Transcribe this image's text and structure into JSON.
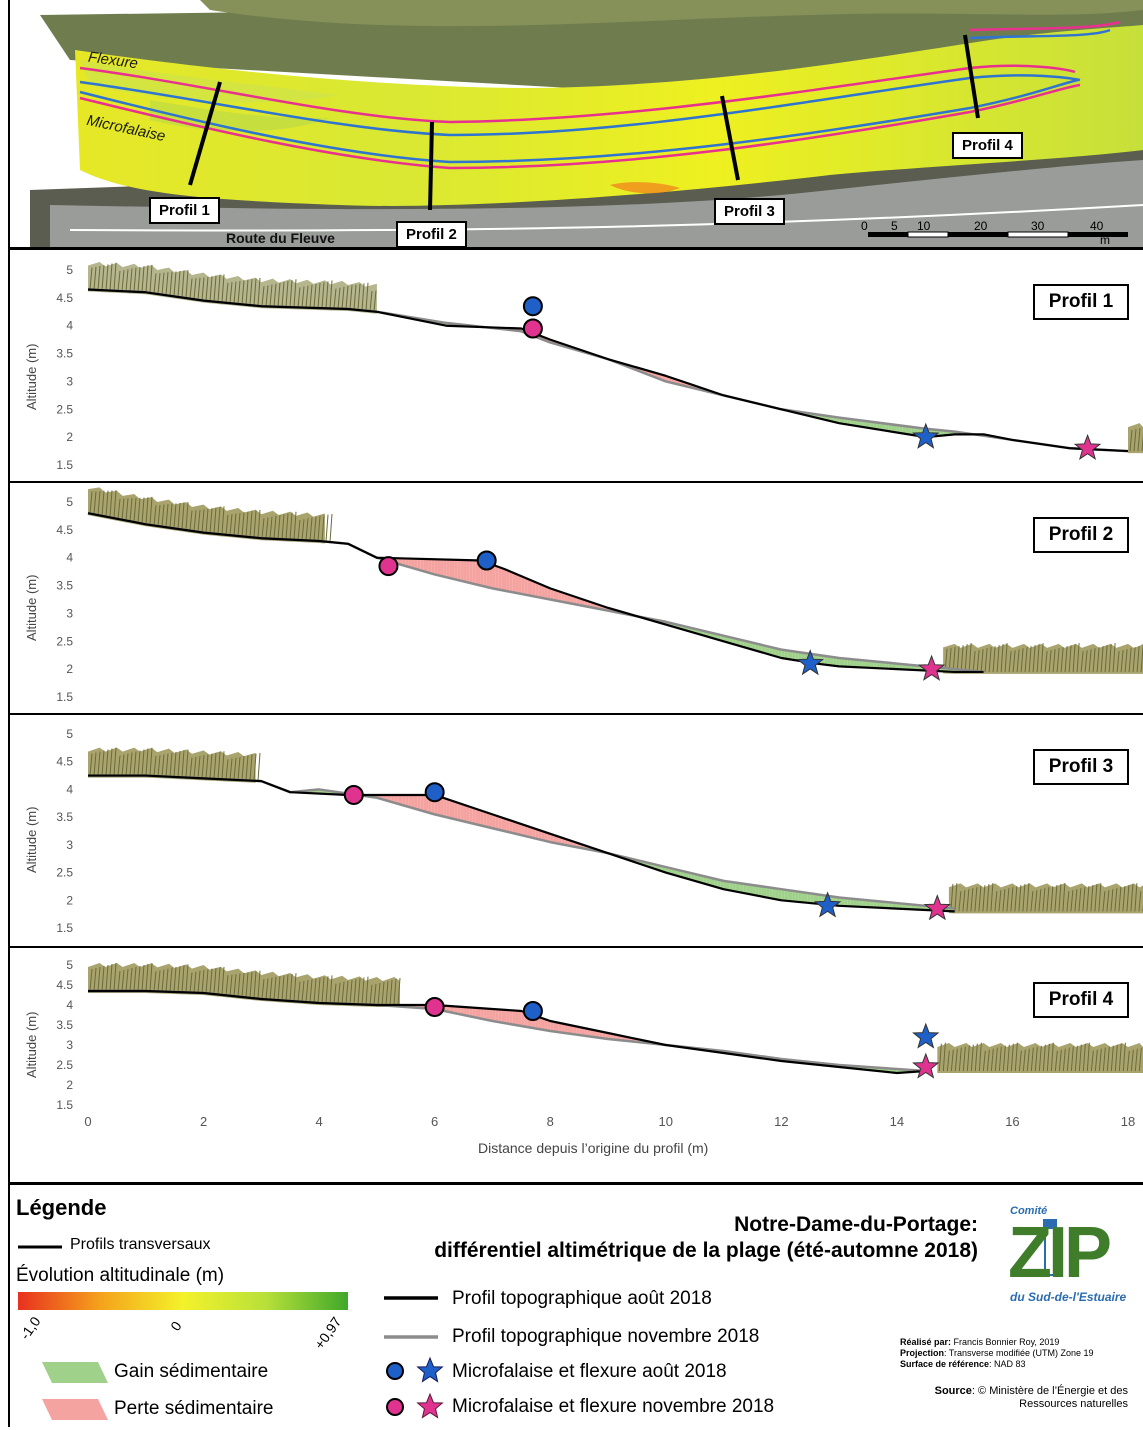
{
  "map": {
    "labels": {
      "flexure": "Flexure",
      "microfalaise": "Microfalaise",
      "route": "Route du Fleuve",
      "profil1": "Profil 1",
      "profil2": "Profil 2",
      "profil3": "Profil 3",
      "profil4": "Profil 4"
    },
    "scale_ticks": [
      "0",
      "5",
      "10",
      "20",
      "30",
      "40"
    ],
    "scale_unit": "m"
  },
  "chart_data": [
    {
      "type": "area",
      "title": "Profil 1",
      "ylabel": "Altitude (m)",
      "ylim": [
        1.5,
        5
      ],
      "yticks": [
        "5",
        "4.5",
        "4",
        "3.5",
        "3",
        "2.5",
        "2",
        "1.5"
      ],
      "xlim": [
        0,
        18
      ],
      "aout": [
        [
          0,
          4.65
        ],
        [
          1,
          4.6
        ],
        [
          2,
          4.45
        ],
        [
          3,
          4.35
        ],
        [
          4.5,
          4.3
        ],
        [
          5,
          4.25
        ],
        [
          6.2,
          4.0
        ],
        [
          7.5,
          3.95
        ],
        [
          8,
          3.75
        ],
        [
          9,
          3.4
        ],
        [
          10,
          3.1
        ],
        [
          11,
          2.75
        ],
        [
          12,
          2.5
        ],
        [
          13,
          2.25
        ],
        [
          14.5,
          2.0
        ],
        [
          15,
          2.05
        ],
        [
          15.5,
          2.05
        ],
        [
          16,
          1.95
        ],
        [
          17,
          1.8
        ],
        [
          18,
          1.75
        ]
      ],
      "novembre": [
        [
          0,
          4.65
        ],
        [
          1,
          4.6
        ],
        [
          2,
          4.45
        ],
        [
          3,
          4.35
        ],
        [
          4.5,
          4.3
        ],
        [
          5,
          4.25
        ],
        [
          6.2,
          4.05
        ],
        [
          7.5,
          3.9
        ],
        [
          8,
          3.7
        ],
        [
          9,
          3.4
        ],
        [
          10,
          3.0
        ],
        [
          11,
          2.75
        ],
        [
          12,
          2.5
        ],
        [
          13,
          2.35
        ],
        [
          14.5,
          2.15
        ],
        [
          15,
          2.1
        ],
        [
          16,
          1.95
        ],
        [
          17,
          1.8
        ],
        [
          18,
          1.75
        ]
      ],
      "flexure_aout": {
        "x": 7.7,
        "y": 4.35
      },
      "flexure_novembre": {
        "x": 7.7,
        "y": 3.95
      },
      "micro_aout": {
        "x": 14.5,
        "y": 2.0
      },
      "micro_novembre": {
        "x": 17.3,
        "y": 1.8
      },
      "veg_left": [
        0,
        5
      ],
      "veg_right": [
        18,
        19
      ]
    },
    {
      "type": "area",
      "title": "Profil 2",
      "ylabel": "Altitude (m)",
      "ylim": [
        1.5,
        5
      ],
      "yticks": [
        "5",
        "4.5",
        "4",
        "3.5",
        "3",
        "2.5",
        "2",
        "1.5"
      ],
      "xlim": [
        0,
        18
      ],
      "aout": [
        [
          0,
          4.8
        ],
        [
          1,
          4.6
        ],
        [
          2,
          4.45
        ],
        [
          3,
          4.35
        ],
        [
          4,
          4.3
        ],
        [
          4.5,
          4.25
        ],
        [
          5,
          4.0
        ],
        [
          6.8,
          3.95
        ],
        [
          7.2,
          3.8
        ],
        [
          8,
          3.45
        ],
        [
          9,
          3.1
        ],
        [
          10,
          2.8
        ],
        [
          11,
          2.5
        ],
        [
          12,
          2.2
        ],
        [
          12.6,
          2.1
        ],
        [
          13,
          2.05
        ],
        [
          14,
          2.0
        ],
        [
          15,
          1.95
        ],
        [
          15.5,
          1.95
        ]
      ],
      "novembre": [
        [
          0,
          4.8
        ],
        [
          1,
          4.6
        ],
        [
          2,
          4.45
        ],
        [
          3,
          4.35
        ],
        [
          4,
          4.3
        ],
        [
          4.5,
          4.25
        ],
        [
          5,
          4.0
        ],
        [
          6,
          3.7
        ],
        [
          7,
          3.45
        ],
        [
          8,
          3.25
        ],
        [
          9,
          3.05
        ],
        [
          10,
          2.85
        ],
        [
          11,
          2.6
        ],
        [
          12,
          2.35
        ],
        [
          13,
          2.2
        ],
        [
          14,
          2.1
        ],
        [
          15,
          2.0
        ],
        [
          15.5,
          1.95
        ]
      ],
      "flexure_aout": {
        "x": 6.9,
        "y": 3.95
      },
      "flexure_novembre": {
        "x": 5.2,
        "y": 3.85
      },
      "micro_aout": {
        "x": 12.5,
        "y": 2.1
      },
      "micro_novembre": {
        "x": 14.6,
        "y": 2.0
      },
      "veg_left": [
        0,
        4.2
      ],
      "veg_right": [
        14.8,
        19
      ]
    },
    {
      "type": "area",
      "title": "Profil 3",
      "ylabel": "Altitude (m)",
      "ylim": [
        1.5,
        5
      ],
      "yticks": [
        "5",
        "4.5",
        "4",
        "3.5",
        "3",
        "2.5",
        "2",
        "1.5"
      ],
      "xlim": [
        0,
        18
      ],
      "aout": [
        [
          0,
          4.25
        ],
        [
          1,
          4.25
        ],
        [
          2,
          4.2
        ],
        [
          3,
          4.15
        ],
        [
          3.5,
          3.95
        ],
        [
          4.5,
          3.9
        ],
        [
          5,
          3.9
        ],
        [
          6,
          3.9
        ],
        [
          7,
          3.55
        ],
        [
          8,
          3.2
        ],
        [
          9,
          2.85
        ],
        [
          10,
          2.5
        ],
        [
          11,
          2.2
        ],
        [
          12,
          2.0
        ],
        [
          13,
          1.9
        ],
        [
          14,
          1.85
        ],
        [
          15,
          1.8
        ]
      ],
      "novembre": [
        [
          0,
          4.25
        ],
        [
          1,
          4.25
        ],
        [
          2,
          4.2
        ],
        [
          3,
          4.15
        ],
        [
          3.5,
          3.95
        ],
        [
          4,
          4.0
        ],
        [
          5,
          3.85
        ],
        [
          6,
          3.55
        ],
        [
          7,
          3.3
        ],
        [
          8,
          3.05
        ],
        [
          9,
          2.85
        ],
        [
          10,
          2.6
        ],
        [
          11,
          2.35
        ],
        [
          12,
          2.2
        ],
        [
          13,
          2.05
        ],
        [
          14,
          1.95
        ],
        [
          15,
          1.85
        ]
      ],
      "flexure_aout": {
        "x": 6.0,
        "y": 3.95
      },
      "flexure_novembre": {
        "x": 4.6,
        "y": 3.9
      },
      "micro_aout": {
        "x": 12.8,
        "y": 1.9
      },
      "micro_novembre": {
        "x": 14.7,
        "y": 1.85
      },
      "veg_left": [
        0,
        3
      ],
      "veg_right": [
        14.9,
        19
      ]
    },
    {
      "type": "area",
      "title": "Profil 4",
      "ylabel": "Altitude (m)",
      "ylim": [
        1.5,
        5
      ],
      "yticks": [
        "5",
        "4.5",
        "4",
        "3.5",
        "3",
        "2.5",
        "2",
        "1.5"
      ],
      "xticks": [
        "0",
        "2",
        "4",
        "6",
        "8",
        "10",
        "12",
        "14",
        "16",
        "18"
      ],
      "xlim": [
        0,
        18
      ],
      "xlabel": "Distance depuis l’origine du profil (m)",
      "aout": [
        [
          0,
          4.35
        ],
        [
          1,
          4.35
        ],
        [
          2,
          4.3
        ],
        [
          3,
          4.15
        ],
        [
          4,
          4.05
        ],
        [
          5,
          4.0
        ],
        [
          6,
          4.0
        ],
        [
          7,
          3.9
        ],
        [
          7.5,
          3.85
        ],
        [
          8,
          3.6
        ],
        [
          9,
          3.3
        ],
        [
          10,
          3.0
        ],
        [
          11,
          2.8
        ],
        [
          12,
          2.6
        ],
        [
          13,
          2.45
        ],
        [
          14,
          2.3
        ],
        [
          14.5,
          2.35
        ]
      ],
      "novembre": [
        [
          0,
          4.35
        ],
        [
          1,
          4.35
        ],
        [
          2,
          4.3
        ],
        [
          3,
          4.15
        ],
        [
          4,
          4.05
        ],
        [
          5,
          4.0
        ],
        [
          6,
          3.9
        ],
        [
          7,
          3.6
        ],
        [
          8,
          3.35
        ],
        [
          9,
          3.15
        ],
        [
          10,
          3.0
        ],
        [
          11,
          2.85
        ],
        [
          12,
          2.65
        ],
        [
          13,
          2.5
        ],
        [
          14,
          2.4
        ],
        [
          14.5,
          2.35
        ]
      ],
      "flexure_aout": {
        "x": 7.7,
        "y": 3.85
      },
      "flexure_novembre": {
        "x": 6.0,
        "y": 3.95
      },
      "micro_aout": {
        "x": 14.5,
        "y": 3.2
      },
      "micro_novembre": {
        "x": 14.5,
        "y": 2.45
      },
      "veg_left": [
        0,
        5.4
      ],
      "veg_right": [
        14.7,
        19
      ]
    }
  ],
  "legend": {
    "title": "Légende",
    "profils_transversaux": "Profils transversaux",
    "evolution": "Évolution altitudinale (m)",
    "ramp_min": "-1,0",
    "ramp_mid": "0",
    "ramp_max": "+0,97",
    "gain": "Gain sédimentaire",
    "perte": "Perte sédimentaire",
    "profil_aout": "Profil topographique août 2018",
    "profil_novembre": "Profil topographique novembre 2018",
    "micro_aout": "Microfalaise et flexure août 2018",
    "micro_novembre": "Microfalaise et flexure novembre 2018"
  },
  "title": {
    "line1": "Notre-Dame-du-Portage:",
    "line2": "différentiel altimétrique de la plage (été-automne 2018)"
  },
  "logo": {
    "top": "Comité",
    "big": "ZIP",
    "bottom": "du Sud-de-l'Estuaire"
  },
  "credits": {
    "realise_label": "Réalisé par:",
    "realise_value": "Francis Bonnier Roy, 2019",
    "projection_label": "Projection",
    "projection_value": ": Transverse modifiée (UTM) Zone 19",
    "surface_label": "Surface de référence",
    "surface_value": ": NAD 83",
    "source_label": "Source",
    "source_value1": ": © Ministère de l’Énergie et des",
    "source_value2": "Ressources naturelles"
  },
  "colors": {
    "gain": "#9fd18a",
    "perte": "#f4a3a0",
    "aout_line": "#000000",
    "novembre_line": "#8c8c8c",
    "blue_marker": "#1f5fc8",
    "pink_marker": "#e0338f",
    "flexure_line": "#2f74d0",
    "microfalaise_line": "#e8318f"
  }
}
